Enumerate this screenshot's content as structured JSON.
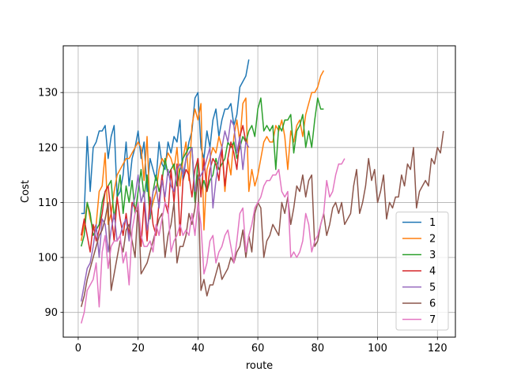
{
  "chart_data": {
    "type": "line",
    "title": "",
    "xlabel": "route",
    "ylabel": "Cost",
    "xlim": [
      -5,
      126
    ],
    "ylim": [
      85.5,
      138.5
    ],
    "xticks": [
      0,
      20,
      40,
      60,
      80,
      100,
      120
    ],
    "yticks": [
      90,
      100,
      110,
      120,
      130
    ],
    "grid": true,
    "legend_position": "lower-right",
    "series": [
      {
        "name": "1",
        "color": "#1f77b4",
        "x_start": 1,
        "values": [
          108,
          108,
          122,
          112,
          120,
          121,
          123,
          123,
          124,
          118,
          122,
          124,
          111,
          112,
          115,
          121,
          113,
          118,
          120,
          123,
          118,
          121,
          112,
          118,
          116,
          114,
          121,
          117,
          116,
          121,
          119,
          122,
          121,
          125,
          114,
          118,
          121,
          123,
          129,
          130,
          120,
          118,
          123,
          120,
          125,
          127,
          122,
          125,
          127,
          127,
          128,
          124,
          126,
          131,
          132,
          133,
          136
        ]
      },
      {
        "name": "2",
        "color": "#ff7f0e",
        "x_start": 1,
        "values": [
          103,
          106,
          110,
          107,
          105,
          106,
          112,
          113,
          119,
          106,
          108,
          112,
          115,
          116,
          117,
          118,
          118,
          119,
          120,
          121,
          120,
          114,
          122,
          108,
          110,
          112,
          116,
          118,
          117,
          119,
          118,
          116,
          120,
          113,
          118,
          121,
          114,
          124,
          127,
          125,
          128,
          105,
          116,
          118,
          120,
          119,
          122,
          120,
          112,
          118,
          115,
          122,
          125,
          121,
          128,
          129,
          112,
          116,
          113,
          115,
          118,
          121,
          122,
          121,
          121,
          124,
          123,
          125,
          122,
          116,
          123,
          121,
          124,
          125,
          122,
          126,
          128,
          130,
          130,
          131,
          133,
          134
        ]
      },
      {
        "name": "3",
        "color": "#2ca02c",
        "x_start": 1,
        "values": [
          102,
          104,
          110,
          108,
          104,
          105,
          106,
          110,
          112,
          113,
          114,
          107,
          111,
          115,
          108,
          113,
          110,
          114,
          108,
          112,
          116,
          111,
          115,
          107,
          112,
          115,
          112,
          114,
          118,
          115,
          116,
          117,
          113,
          116,
          118,
          119,
          120,
          120,
          110,
          118,
          112,
          114,
          112,
          114,
          115,
          118,
          116,
          117,
          118,
          121,
          120,
          121,
          118,
          120,
          122,
          121,
          123,
          124,
          122,
          127,
          129,
          123,
          124,
          123,
          124,
          116,
          124,
          123,
          125,
          125,
          126,
          119,
          123,
          124,
          126,
          120,
          123,
          120,
          125,
          129,
          127,
          127
        ]
      },
      {
        "name": "4",
        "color": "#d62728",
        "x_start": 1,
        "values": [
          104,
          107,
          104,
          101,
          106,
          103,
          105,
          108,
          112,
          113,
          108,
          103,
          111,
          107,
          104,
          108,
          104,
          110,
          109,
          108,
          102,
          110,
          103,
          111,
          106,
          104,
          110,
          115,
          110,
          108,
          116,
          110,
          117,
          104,
          114,
          116,
          115,
          111,
          116,
          118,
          111,
          118,
          112,
          116,
          118,
          117,
          114,
          120,
          113,
          118,
          121,
          119,
          116,
          122,
          124,
          121
        ]
      },
      {
        "name": "5",
        "color": "#9467bd",
        "x_start": 1,
        "values": [
          92,
          95,
          98,
          99,
          102,
          106,
          100,
          107,
          106,
          101,
          105,
          108,
          103,
          104,
          106,
          107,
          103,
          109,
          111,
          115,
          110,
          112,
          105,
          108,
          112,
          113,
          109,
          114,
          111,
          116,
          113,
          112,
          116,
          117,
          115,
          118,
          119,
          120,
          112,
          114,
          115,
          116,
          118,
          120,
          109,
          114,
          118,
          120,
          123,
          121,
          125,
          124,
          119,
          122,
          116,
          121,
          120
        ]
      },
      {
        "name": "6",
        "color": "#8c564b",
        "x_start": 1,
        "values": [
          91,
          93,
          96,
          98,
          100,
          102,
          104,
          105,
          107,
          110,
          94,
          97,
          100,
          103,
          101,
          105,
          106,
          103,
          100,
          110,
          97,
          98,
          99,
          101,
          103,
          105,
          107,
          108,
          100,
          104,
          106,
          110,
          99,
          102,
          102,
          104,
          108,
          106,
          109,
          115,
          94,
          96,
          93,
          95,
          95,
          97,
          99,
          96,
          97,
          98,
          100,
          99,
          101,
          102,
          105,
          100,
          104,
          101,
          108,
          110,
          109,
          100,
          103,
          104,
          106,
          105,
          104,
          110,
          108,
          111,
          106,
          109,
          113,
          112,
          115,
          111,
          114,
          115,
          102,
          103,
          106,
          108,
          104,
          106,
          109,
          110,
          108,
          110,
          106,
          107,
          108,
          113,
          116,
          108,
          110,
          113,
          118,
          114,
          116,
          110,
          112,
          115,
          107,
          110,
          109,
          111,
          111,
          115,
          113,
          117,
          116,
          120,
          109,
          112,
          113,
          114,
          113,
          118,
          117,
          120,
          119,
          123
        ]
      },
      {
        "name": "7",
        "color": "#e377c2",
        "x_start": 1,
        "values": [
          88,
          90,
          94,
          95,
          96,
          99,
          91,
          101,
          104,
          98,
          102,
          103,
          103,
          104,
          99,
          101,
          95,
          105,
          108,
          110,
          104,
          102,
          102,
          103,
          101,
          106,
          104,
          107,
          110,
          109,
          101,
          103,
          104,
          106,
          104,
          105,
          104,
          108,
          104,
          110,
          106,
          97,
          99,
          103,
          104,
          99,
          101,
          102,
          104,
          105,
          102,
          99,
          103,
          108,
          109,
          101,
          104,
          106,
          109,
          110,
          111,
          113,
          114,
          114,
          115,
          115,
          116,
          112,
          111,
          112,
          100,
          101,
          100,
          101,
          103,
          108,
          106,
          101,
          103,
          104,
          106,
          108,
          114,
          111,
          112,
          115,
          117,
          117,
          118
        ]
      }
    ]
  }
}
